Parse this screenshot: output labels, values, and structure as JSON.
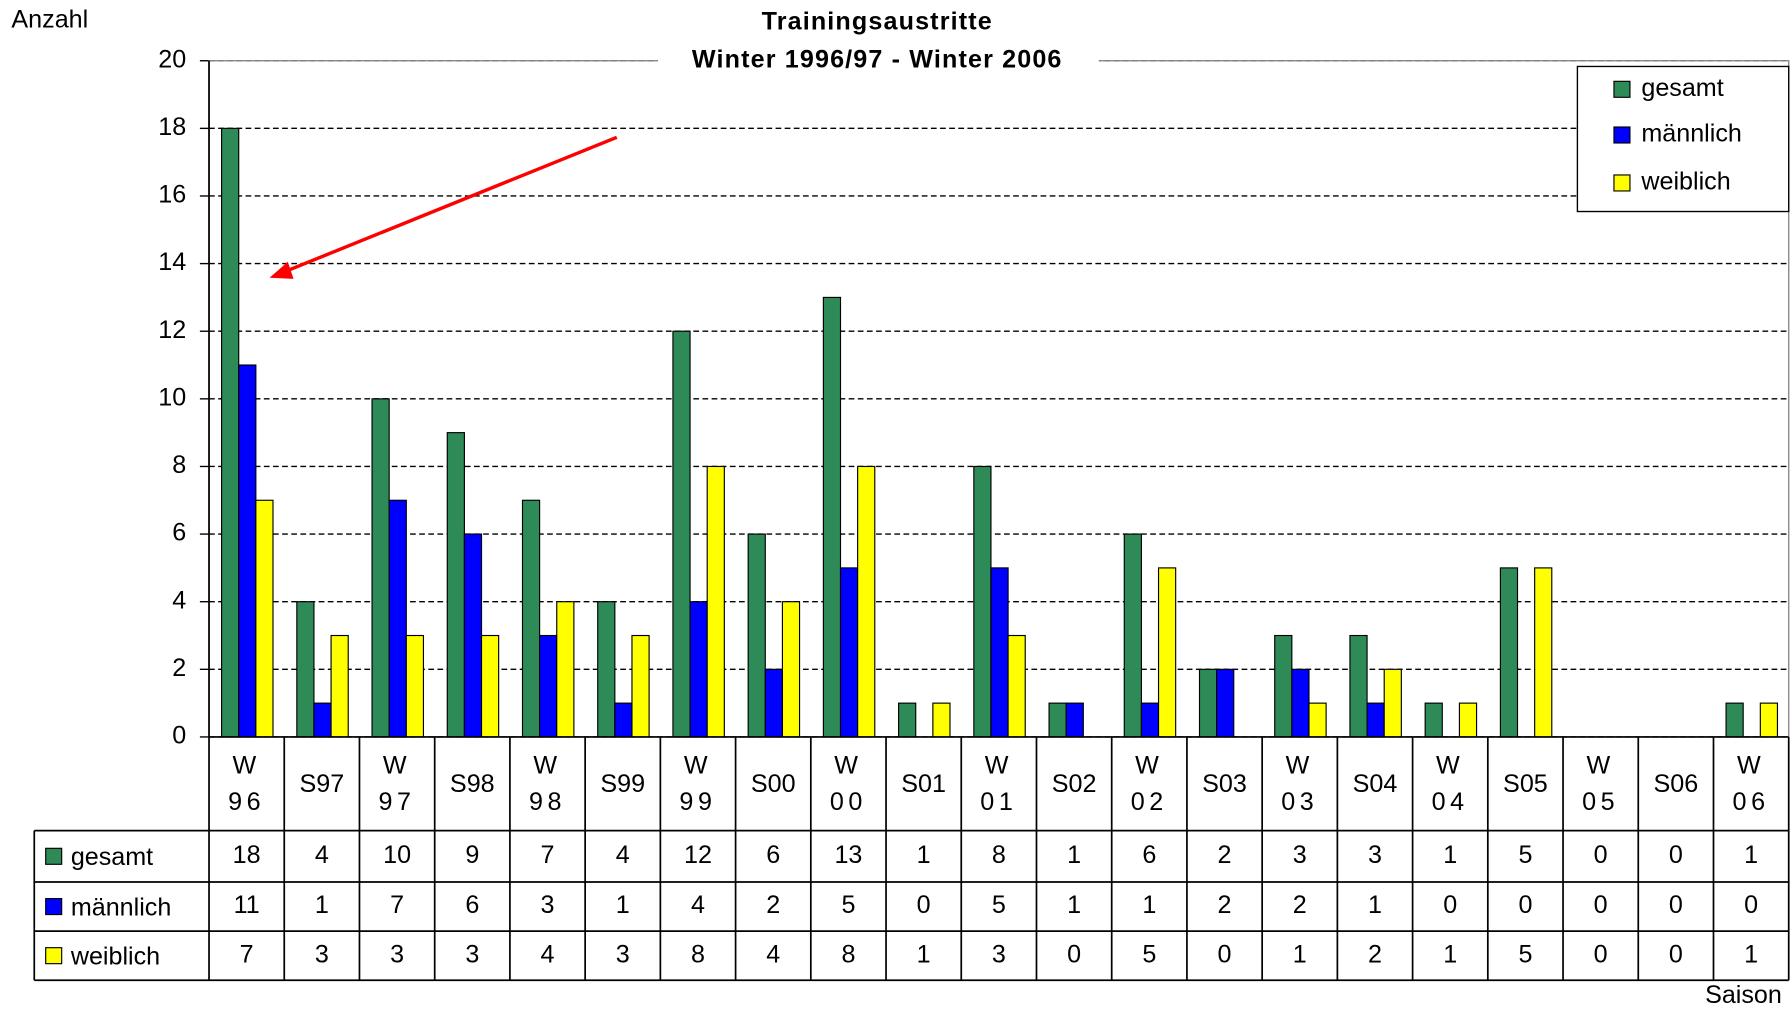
{
  "chart_data": {
    "type": "bar",
    "title": "Trainingsaustritte",
    "subtitle": "Winter 1996/97 - Winter 2006",
    "y_label": "Anzahl",
    "x_label": "Saison",
    "categories": [
      "W96",
      "S97",
      "W97",
      "S98",
      "W98",
      "S99",
      "W99",
      "S00",
      "W00",
      "S01",
      "W01",
      "S02",
      "W02",
      "S03",
      "W03",
      "S04",
      "W04",
      "S05",
      "W05",
      "S06",
      "W06"
    ],
    "series": [
      {
        "name": "gesamt",
        "color": "#2e8b57",
        "values": [
          18,
          4,
          10,
          9,
          7,
          4,
          12,
          6,
          13,
          1,
          8,
          1,
          6,
          2,
          3,
          3,
          1,
          5,
          0,
          0,
          1
        ]
      },
      {
        "name": "männlich",
        "color": "#0000ff",
        "values": [
          11,
          1,
          7,
          6,
          3,
          1,
          4,
          2,
          5,
          0,
          5,
          1,
          1,
          2,
          2,
          1,
          0,
          0,
          0,
          0,
          0
        ]
      },
      {
        "name": "weiblich",
        "color": "#ffff00",
        "values": [
          7,
          3,
          3,
          3,
          4,
          3,
          8,
          4,
          8,
          1,
          3,
          0,
          5,
          0,
          1,
          2,
          1,
          5,
          0,
          0,
          1
        ]
      }
    ],
    "ylim": [
      0,
      20
    ],
    "yticks": [
      0,
      2,
      4,
      6,
      8,
      10,
      12,
      14,
      16,
      18,
      20
    ],
    "grid": true,
    "legend": "upper right"
  }
}
